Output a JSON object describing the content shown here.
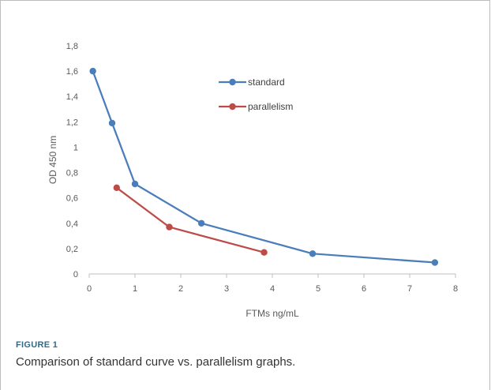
{
  "figure": {
    "label": "FIGURE 1",
    "caption": "Comparison of standard curve vs. parallelism graphs."
  },
  "chart_data": {
    "type": "line",
    "xlabel": "FTMs ng/mL",
    "ylabel": "OD 450 nm",
    "xlim": [
      0,
      8
    ],
    "ylim": [
      0,
      1.8
    ],
    "x_ticks": [
      "0",
      "1",
      "2",
      "3",
      "4",
      "5",
      "6",
      "7",
      "8"
    ],
    "y_ticks": [
      "0",
      "0,2",
      "0,4",
      "0,6",
      "0,8",
      "1",
      "1,2",
      "1,4",
      "1,6",
      "1,8"
    ],
    "grid": false,
    "legend_position": "top-center",
    "series": [
      {
        "name": "standard",
        "color": "#4a7ebb",
        "x": [
          0.08,
          0.5,
          1.0,
          2.45,
          4.88,
          7.55
        ],
        "y": [
          1.6,
          1.19,
          0.71,
          0.4,
          0.16,
          0.09
        ]
      },
      {
        "name": "parallelism",
        "color": "#be4b48",
        "x": [
          0.6,
          1.75,
          3.82
        ],
        "y": [
          0.68,
          0.37,
          0.17
        ]
      }
    ]
  }
}
